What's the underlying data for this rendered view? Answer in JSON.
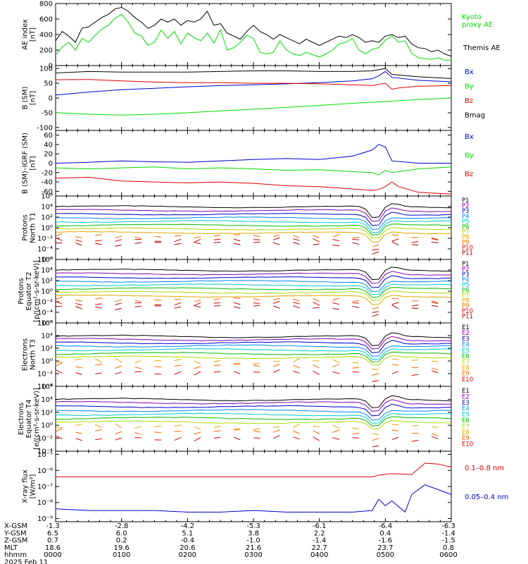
{
  "chart_data": {
    "type": "line",
    "x_range_hhmm": [
      "0000",
      "0600"
    ],
    "x_tick_hhmm": [
      "0000",
      "0100",
      "0200",
      "0300",
      "0400",
      "0500",
      "0600"
    ],
    "panels": [
      {
        "id": "ae",
        "ylabel": [
          "AE index",
          "[nT]"
        ],
        "ylim": [
          0,
          800
        ],
        "scale": "linear",
        "yticks": [
          "0",
          "200",
          "400",
          "600",
          "800"
        ],
        "legend": [
          {
            "text": "Kyoto",
            "color": "#00dd00"
          },
          {
            "text": "proxy AE",
            "color": "#00dd00"
          },
          {
            "text": "Themis AE",
            "color": "#000000"
          }
        ],
        "series": [
          {
            "name": "Kyoto proxy AE",
            "color": "#00dd00",
            "x": [
              0,
              0.1,
              0.2,
              0.3,
              0.4,
              0.5,
              0.6,
              0.7,
              0.8,
              0.9,
              1.0,
              1.1,
              1.2,
              1.3,
              1.4,
              1.5,
              1.6,
              1.7,
              1.8,
              1.9,
              2.0,
              2.1,
              2.2,
              2.3,
              2.4,
              2.5,
              2.6,
              2.7,
              2.8,
              2.9,
              3.0,
              3.1,
              3.2,
              3.3,
              3.4,
              3.5,
              3.6,
              3.7,
              3.8,
              3.9,
              4.0,
              4.1,
              4.2,
              4.3,
              4.4,
              4.5,
              4.6,
              4.7,
              4.8,
              4.9,
              5.0,
              5.1,
              5.2,
              5.3,
              5.4,
              5.5,
              5.6,
              5.7,
              5.8,
              5.9,
              6.0
            ],
            "y": [
              140,
              240,
              300,
              200,
              350,
              300,
              390,
              470,
              520,
              610,
              660,
              560,
              420,
              380,
              260,
              300,
              460,
              350,
              440,
              280,
              420,
              360,
              320,
              420,
              290,
              460,
              200,
              230,
              300,
              390,
              350,
              170,
              150,
              170,
              320,
              200,
              150,
              130,
              170,
              140,
              110,
              150,
              200,
              280,
              300,
              350,
              200,
              150,
              210,
              230,
              330,
              380,
              300,
              320,
              160,
              100,
              90,
              80,
              100,
              70,
              70
            ]
          },
          {
            "name": "Themis AE",
            "color": "#000000",
            "x": [
              0,
              0.1,
              0.2,
              0.3,
              0.4,
              0.5,
              0.6,
              0.7,
              0.8,
              0.9,
              1.0,
              1.1,
              1.2,
              1.3,
              1.4,
              1.5,
              1.6,
              1.7,
              1.8,
              1.9,
              2.0,
              2.1,
              2.2,
              2.3,
              2.4,
              2.5,
              2.6,
              2.7,
              2.8,
              2.9,
              3.0,
              3.1,
              3.2,
              3.3,
              3.4,
              3.5,
              3.6,
              3.7,
              3.8,
              3.9,
              4.0,
              4.1,
              4.2,
              4.3,
              4.4,
              4.5,
              4.6,
              4.7,
              4.8,
              4.9,
              5.0,
              5.1,
              5.2,
              5.3,
              5.4,
              5.5,
              5.6,
              5.7,
              5.8,
              5.9,
              6.0
            ],
            "y": [
              320,
              440,
              380,
              300,
              480,
              500,
              560,
              620,
              660,
              730,
              750,
              700,
              620,
              560,
              480,
              520,
              600,
              560,
              600,
              520,
              580,
              560,
              600,
              700,
              520,
              540,
              420,
              380,
              340,
              440,
              520,
              440,
              400,
              340,
              400,
              360,
              320,
              280,
              340,
              300,
              260,
              300,
              340,
              380,
              360,
              400,
              360,
              300,
              320,
              300,
              380,
              400,
              360,
              380,
              280,
              230,
              220,
              180,
              200,
              150,
              120
            ]
          }
        ]
      },
      {
        "id": "b_sm",
        "ylabel": [
          "B (SM)",
          "[nT]"
        ],
        "ylim": [
          -110,
          110
        ],
        "scale": "linear",
        "yticks": [
          "-100",
          "-50",
          "0",
          "50",
          "100"
        ],
        "legend": [
          {
            "text": "Bx",
            "color": "#0000cc"
          },
          {
            "text": "By",
            "color": "#00dd00"
          },
          {
            "text": "Bz",
            "color": "#dd0000"
          },
          {
            "text": "Bmag",
            "color": "#000000"
          }
        ],
        "series": [
          {
            "name": "Bx",
            "color": "#0000cc",
            "x": [
              0,
              0.5,
              1,
              1.5,
              2,
              2.5,
              3,
              3.5,
              4,
              4.5,
              4.8,
              4.9,
              5.0,
              5.1,
              5.5,
              6.0
            ],
            "y": [
              10,
              20,
              28,
              33,
              38,
              42,
              45,
              48,
              52,
              58,
              65,
              75,
              90,
              70,
              60,
              55
            ]
          },
          {
            "name": "By",
            "color": "#00dd00",
            "x": [
              0,
              0.5,
              1,
              1.5,
              2,
              2.5,
              3,
              3.5,
              4,
              4.5,
              5.0,
              5.5,
              6.0
            ],
            "y": [
              -50,
              -55,
              -58,
              -55,
              -50,
              -44,
              -38,
              -32,
              -25,
              -18,
              -12,
              -5,
              0
            ]
          },
          {
            "name": "Bz",
            "color": "#dd0000",
            "x": [
              0,
              0.5,
              1,
              1.5,
              2,
              2.5,
              3,
              3.5,
              4,
              4.5,
              4.8,
              5.0,
              5.1,
              5.2,
              5.5,
              6.0
            ],
            "y": [
              62,
              63,
              58,
              54,
              52,
              52,
              50,
              50,
              48,
              45,
              42,
              50,
              30,
              34,
              40,
              42
            ]
          },
          {
            "name": "Bmag",
            "color": "#000000",
            "x": [
              0,
              0.5,
              1,
              1.5,
              2,
              2.5,
              3,
              3.5,
              4,
              4.5,
              4.8,
              5.0,
              5.1,
              5.5,
              6.0
            ],
            "y": [
              85,
              90,
              88,
              88,
              88,
              90,
              92,
              92,
              90,
              90,
              92,
              100,
              80,
              72,
              66
            ]
          }
        ]
      },
      {
        "id": "b_igrf",
        "ylabel": [
          "B (SM)–IGRF (SM)",
          "[nT]"
        ],
        "ylim": [
          -70,
          70
        ],
        "scale": "linear",
        "yticks": [
          "-60",
          "-40",
          "-20",
          "0",
          "20",
          "40",
          "60"
        ],
        "legend": [
          {
            "text": "Bx",
            "color": "#0000cc"
          },
          {
            "text": "By",
            "color": "#00dd00"
          },
          {
            "text": "Bz",
            "color": "#dd0000"
          }
        ],
        "series": [
          {
            "name": "Bx",
            "color": "#0000cc",
            "x": [
              0,
              0.5,
              1,
              1.5,
              2,
              2.5,
              3,
              3.5,
              4,
              4.5,
              4.8,
              4.9,
              5.0,
              5.1,
              5.5,
              6.0
            ],
            "y": [
              0,
              2,
              5,
              3,
              2,
              5,
              8,
              10,
              8,
              15,
              28,
              40,
              35,
              5,
              0,
              0
            ]
          },
          {
            "name": "By",
            "color": "#00dd00",
            "x": [
              0,
              0.5,
              1,
              1.5,
              2,
              2.5,
              3,
              3.5,
              4,
              4.5,
              4.8,
              4.9,
              5.0,
              5.1,
              5.5,
              6.0
            ],
            "y": [
              -10,
              -12,
              -10,
              -8,
              -12,
              -10,
              -12,
              -15,
              -14,
              -18,
              -20,
              -25,
              -15,
              -20,
              -12,
              -8
            ]
          },
          {
            "name": "Bz",
            "color": "#dd0000",
            "x": [
              0,
              0.5,
              1,
              1.5,
              2,
              2.5,
              3,
              3.5,
              4,
              4.5,
              4.8,
              4.9,
              5.0,
              5.1,
              5.2,
              5.5,
              6.0
            ],
            "y": [
              -32,
              -30,
              -38,
              -40,
              -42,
              -40,
              -43,
              -48,
              -50,
              -55,
              -58,
              -56,
              -50,
              -40,
              -50,
              -62,
              -66
            ]
          }
        ]
      },
      {
        "id": "protons_nt1",
        "ylabel": [
          "Protons",
          "North T1"
        ],
        "ylim_exp": [
          -6,
          6
        ],
        "scale": "log",
        "yticks": [
          "10⁻⁶",
          "10⁻⁴",
          "10⁻²",
          "10⁰",
          "10²",
          "10⁴",
          "10⁶"
        ],
        "channels": [
          "P1",
          "P2",
          "P3",
          "P4",
          "P5",
          "P6",
          "P7",
          "P8",
          "P9",
          "P10",
          "P11"
        ],
        "channel_colors": [
          "#000000",
          "#8800aa",
          "#0000cc",
          "#0088ff",
          "#00cccc",
          "#00bb00",
          "#aadd00",
          "#ddaa00",
          "#ff6600",
          "#dd0000",
          "#aa0000"
        ],
        "base_exp": [
          4.0,
          3.3,
          2.6,
          1.9,
          1.2,
          0.5,
          -0.2,
          -0.9,
          -1.6,
          -2.3,
          -3.0
        ],
        "dip_exp": 2.5
      },
      {
        "id": "protons_eq2",
        "ylabel": [
          "Protons",
          "Equator T2",
          "[p/(cm²-s-sr-keV)]"
        ],
        "ylim_exp": [
          -6,
          6
        ],
        "scale": "log",
        "yticks": [
          "10⁻⁶",
          "10⁻⁴",
          "10⁻²",
          "10⁰",
          "10²",
          "10⁴",
          "10⁶"
        ],
        "channels": [
          "P1",
          "P2",
          "P3",
          "P4",
          "P5",
          "P6",
          "P7",
          "P8",
          "P9",
          "P10",
          "P11"
        ],
        "channel_colors": [
          "#000000",
          "#8800aa",
          "#0000cc",
          "#0088ff",
          "#00cccc",
          "#00bb00",
          "#aadd00",
          "#ddaa00",
          "#ff6600",
          "#dd0000",
          "#aa0000"
        ],
        "base_exp": [
          4.0,
          3.3,
          2.6,
          1.9,
          1.2,
          0.5,
          -0.2,
          -0.9,
          -1.6,
          -2.3,
          -3.0
        ],
        "dip_exp": 2.2
      },
      {
        "id": "electrons_nt3",
        "ylabel": [
          "Electrons",
          "North T3"
        ],
        "ylim_exp": [
          -4,
          6
        ],
        "scale": "log",
        "yticks": [
          "10⁻⁴",
          "10⁻²",
          "10⁰",
          "10²",
          "10⁴",
          "10⁶"
        ],
        "channels": [
          "E1",
          "E2",
          "E3",
          "E4",
          "E5",
          "E6",
          "E7",
          "E8",
          "E9",
          "E10"
        ],
        "channel_colors": [
          "#000000",
          "#8800aa",
          "#0000cc",
          "#0088ff",
          "#00cccc",
          "#00bb00",
          "#aadd00",
          "#ddaa00",
          "#ff6600",
          "#dd0000"
        ],
        "base_exp": [
          3.9,
          3.4,
          2.9,
          2.4,
          1.8,
          1.2,
          0.6,
          0.0,
          -0.8,
          -1.8
        ],
        "dip_exp": 1.8
      },
      {
        "id": "electrons_eq4",
        "ylabel": [
          "Electrons",
          "Equator T4",
          "[e/(cm²-s-sr-keV)]"
        ],
        "ylim_exp": [
          -4,
          6
        ],
        "scale": "log",
        "yticks": [
          "10⁻⁴",
          "10⁻²",
          "10⁰",
          "10²",
          "10⁴",
          "10⁶"
        ],
        "channels": [
          "E1",
          "E2",
          "E3",
          "E4",
          "E5",
          "E6",
          "E7",
          "E8",
          "E9",
          "E10"
        ],
        "channel_colors": [
          "#000000",
          "#8800aa",
          "#0000cc",
          "#0088ff",
          "#00cccc",
          "#00bb00",
          "#aadd00",
          "#ddaa00",
          "#ff6600",
          "#dd0000"
        ],
        "base_exp": [
          4.0,
          3.5,
          2.9,
          2.3,
          1.7,
          1.1,
          0.5,
          -0.2,
          -1.0,
          -2.0
        ],
        "dip_exp": 1.6
      },
      {
        "id": "xray",
        "ylabel": [
          "X-ray flux",
          "[W/m²]"
        ],
        "ylim_exp": [
          -9.2,
          -4.8
        ],
        "scale": "log",
        "yticks": [
          "10⁻⁹",
          "10⁻⁸",
          "10⁻⁷",
          "10⁻⁶",
          "10⁻⁵"
        ],
        "legend": [
          {
            "text": "0.1–0.8 nm",
            "color": "#dd0000"
          },
          {
            "text": "0.05–0.4 nm",
            "color": "#0000cc"
          }
        ],
        "series": [
          {
            "name": "0.1–0.8 nm",
            "color": "#dd0000",
            "x": [
              0,
              1,
              2,
              3,
              4,
              4.8,
              4.9,
              5.1,
              5.4,
              5.6,
              5.8,
              6.0
            ],
            "y_exp": [
              -6.4,
              -6.4,
              -6.4,
              -6.4,
              -6.4,
              -6.4,
              -6.3,
              -6.2,
              -6.25,
              -5.55,
              -5.6,
              -5.8
            ]
          },
          {
            "name": "0.05–0.4 nm",
            "color": "#0000cc",
            "x": [
              0,
              0.5,
              1,
              1.5,
              2,
              2.5,
              3,
              3.5,
              4,
              4.5,
              4.8,
              4.9,
              5.0,
              5.1,
              5.3,
              5.4,
              5.6,
              5.8,
              6.0
            ],
            "y_exp": [
              -8.4,
              -8.5,
              -8.5,
              -8.5,
              -8.6,
              -8.6,
              -8.5,
              -8.6,
              -8.6,
              -8.6,
              -8.5,
              -7.8,
              -8.2,
              -7.9,
              -8.6,
              -7.5,
              -6.9,
              -7.2,
              -7.5
            ]
          }
        ]
      }
    ],
    "ephemeris": {
      "rows": [
        {
          "label": "X-GSM",
          "values": [
            "-1.3",
            "-2.8",
            "-4.2",
            "-5.3",
            "-6.1",
            "-6.4",
            "-6.3"
          ]
        },
        {
          "label": "Y-GSM",
          "values": [
            "6.5",
            "6.0",
            "5.1",
            "3.8",
            "2.2",
            "0.4",
            "-1.4"
          ]
        },
        {
          "label": "Z-GSM",
          "values": [
            "0.7",
            "0.2",
            "-0.4",
            "-1.0",
            "-1.4",
            "-1.6",
            "-1.5"
          ]
        },
        {
          "label": "MLT",
          "values": [
            "18.6",
            "19.6",
            "20.6",
            "21.6",
            "22.7",
            "23.7",
            "0.8"
          ]
        },
        {
          "label": "hhmm",
          "values": [
            "0000",
            "0100",
            "0200",
            "0300",
            "0400",
            "0500",
            "0600"
          ]
        }
      ],
      "date": "2025 Feb 11"
    }
  }
}
